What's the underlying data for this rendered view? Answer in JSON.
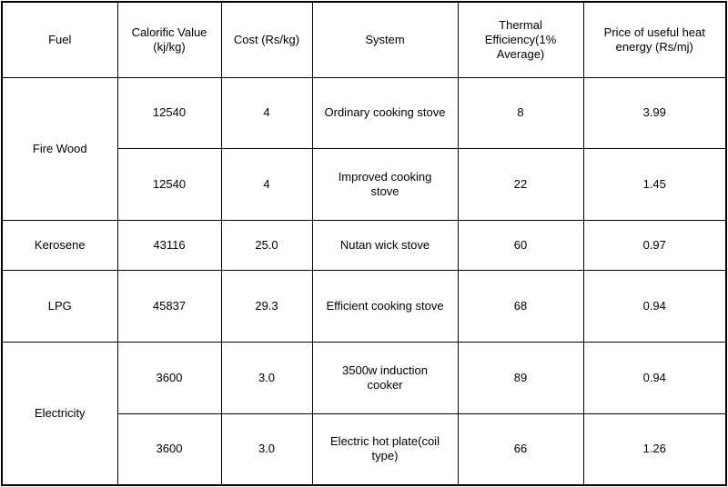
{
  "headers": {
    "fuel": "Fuel",
    "calorific": "Calorific Value (kj/kg)",
    "cost": "Cost (Rs/kg)",
    "system": "System",
    "efficiency": "Thermal Efficiency(1% Average)",
    "price": "Price of useful heat energy (Rs/mj)"
  },
  "groups": [
    {
      "fuel": "Fire Wood",
      "rows": [
        {
          "calorific": "12540",
          "cost": "4",
          "system": "Ordinary cooking stove",
          "efficiency": "8",
          "price": "3.99"
        },
        {
          "calorific": "12540",
          "cost": "4",
          "system": "Improved cooking stove",
          "efficiency": "22",
          "price": "1.45"
        }
      ]
    },
    {
      "fuel": "Kerosene",
      "rows": [
        {
          "calorific": "43116",
          "cost": "25.0",
          "system": "Nutan wick stove",
          "efficiency": "60",
          "price": "0.97"
        }
      ]
    },
    {
      "fuel": "LPG",
      "rows": [
        {
          "calorific": "45837",
          "cost": "29.3",
          "system": "Efficient cooking stove",
          "efficiency": "68",
          "price": "0.94"
        }
      ]
    },
    {
      "fuel": "Electricity",
      "rows": [
        {
          "calorific": "3600",
          "cost": "3.0",
          "system": "3500w induction cooker",
          "efficiency": "89",
          "price": "0.94"
        },
        {
          "calorific": "3600",
          "cost": "3.0",
          "system": "Electric hot plate(coil type)",
          "efficiency": "66",
          "price": "1.26"
        }
      ]
    }
  ]
}
